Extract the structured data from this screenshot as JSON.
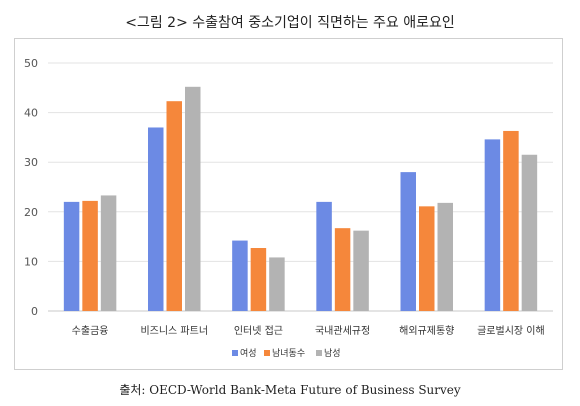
{
  "title": "<그림 2> 수출참여 중소기업이 직면하는 주요 애로요인",
  "source": "출처: OECD-World Bank-Meta Future of Business Survey",
  "chart_data": {
    "type": "bar",
    "title": "<그림 2> 수출참여 중소기업이 직면하는 주요 애로요인",
    "xlabel": "",
    "ylabel": "",
    "ylim": [
      0,
      50
    ],
    "yticks": [
      0,
      10,
      20,
      30,
      40,
      50
    ],
    "grid": true,
    "legend_position": "bottom",
    "categories": [
      "수출금융",
      "비즈니스 파트너",
      "인터넷 접근",
      "국내관세규정",
      "해외규제통향",
      "글로벌시장 이해"
    ],
    "series": [
      {
        "name": "여성",
        "color": "#6c8ae4",
        "values": [
          22,
          37,
          14.2,
          22,
          28,
          34.6
        ]
      },
      {
        "name": "남녀동수",
        "color": "#f5873b",
        "values": [
          22.2,
          42.3,
          12.7,
          16.7,
          21.1,
          36.3
        ]
      },
      {
        "name": "남성",
        "color": "#b3b3b3",
        "values": [
          23.3,
          45.2,
          10.8,
          16.2,
          21.8,
          31.5
        ]
      }
    ]
  }
}
